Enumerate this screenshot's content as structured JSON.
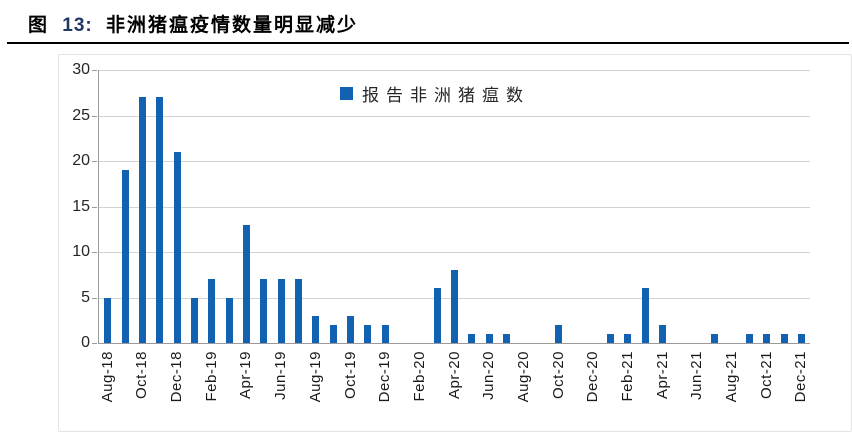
{
  "title": {
    "figure_label": "图",
    "figure_number": "13:",
    "text": "非洲猪瘟疫情数量明显减少",
    "number_color": "#1F3864"
  },
  "chart_data": {
    "type": "bar",
    "title": "图 13: 非洲猪瘟疫情数量明显减少",
    "legend": "报告非洲猪瘟数",
    "legend_position": "top-center",
    "grid": true,
    "months": [
      "Aug-18",
      "Sep-18",
      "Oct-18",
      "Nov-18",
      "Dec-18",
      "Jan-19",
      "Feb-19",
      "Mar-19",
      "Apr-19",
      "May-19",
      "Jun-19",
      "Jul-19",
      "Aug-19",
      "Sep-19",
      "Oct-19",
      "Nov-19",
      "Dec-19",
      "Jan-20",
      "Feb-20",
      "Mar-20",
      "Apr-20",
      "May-20",
      "Jun-20",
      "Jul-20",
      "Aug-20",
      "Sep-20",
      "Oct-20",
      "Nov-20",
      "Dec-20",
      "Jan-21",
      "Feb-21",
      "Mar-21",
      "Apr-21",
      "May-21",
      "Jun-21",
      "Jul-21",
      "Aug-21",
      "Sep-21",
      "Oct-21",
      "Nov-21",
      "Dec-21"
    ],
    "values": [
      5,
      19,
      27,
      27,
      21,
      5,
      7,
      5,
      13,
      7,
      7,
      7,
      3,
      2,
      3,
      2,
      2,
      0,
      0,
      6,
      8,
      1,
      1,
      1,
      0,
      0,
      2,
      0,
      0,
      1,
      1,
      6,
      2,
      0,
      0,
      1,
      0,
      1,
      1,
      1,
      1
    ],
    "x_label_every": 2,
    "ylim": [
      0,
      30
    ],
    "yticks": [
      0,
      5,
      10,
      15,
      20,
      25,
      30
    ],
    "colors": {
      "bar": "#1262B1",
      "gridline": "#d2d2d2",
      "axis": "#9a9a9a"
    }
  }
}
